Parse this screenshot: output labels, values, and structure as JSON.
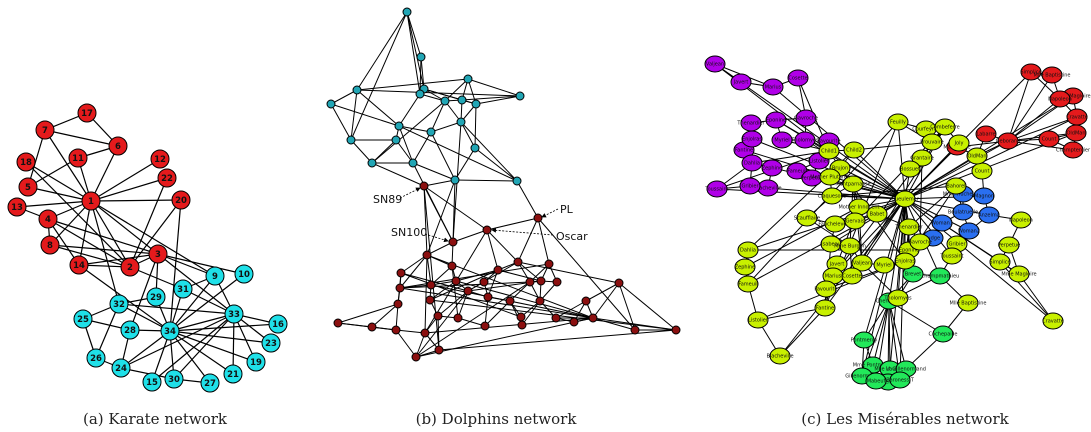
{
  "panels": [
    {
      "caption": "(a) Karate network"
    },
    {
      "caption": "(b) Dolphins network"
    },
    {
      "caption": "(c) Les Misérables network"
    }
  ],
  "colors": {
    "red": "#e41a1c",
    "cyan": "#1fe0e8",
    "darkred": "#8b1010",
    "teal": "#22a6b5",
    "purple": "#b000e8",
    "yellowgreen": "#c8f000",
    "blue": "#2a6ff0",
    "green": "#22e85a"
  },
  "annotations": [
    "SN89",
    "SN100",
    "PL",
    "Oscar"
  ],
  "karate": {
    "nodes": [
      {
        "id": "1",
        "g": "red"
      },
      {
        "id": "2",
        "g": "red"
      },
      {
        "id": "3",
        "g": "red"
      },
      {
        "id": "4",
        "g": "red"
      },
      {
        "id": "5",
        "g": "red"
      },
      {
        "id": "6",
        "g": "red"
      },
      {
        "id": "7",
        "g": "red"
      },
      {
        "id": "8",
        "g": "red"
      },
      {
        "id": "9",
        "g": "cyan"
      },
      {
        "id": "10",
        "g": "cyan"
      },
      {
        "id": "11",
        "g": "red"
      },
      {
        "id": "12",
        "g": "red"
      },
      {
        "id": "13",
        "g": "red"
      },
      {
        "id": "14",
        "g": "red"
      },
      {
        "id": "15",
        "g": "cyan"
      },
      {
        "id": "16",
        "g": "cyan"
      },
      {
        "id": "17",
        "g": "red"
      },
      {
        "id": "18",
        "g": "red"
      },
      {
        "id": "19",
        "g": "cyan"
      },
      {
        "id": "20",
        "g": "red"
      },
      {
        "id": "21",
        "g": "cyan"
      },
      {
        "id": "22",
        "g": "red"
      },
      {
        "id": "23",
        "g": "cyan"
      },
      {
        "id": "24",
        "g": "cyan"
      },
      {
        "id": "25",
        "g": "cyan"
      },
      {
        "id": "26",
        "g": "cyan"
      },
      {
        "id": "27",
        "g": "cyan"
      },
      {
        "id": "28",
        "g": "cyan"
      },
      {
        "id": "29",
        "g": "cyan"
      },
      {
        "id": "30",
        "g": "cyan"
      },
      {
        "id": "31",
        "g": "cyan"
      },
      {
        "id": "32",
        "g": "cyan"
      },
      {
        "id": "33",
        "g": "cyan"
      },
      {
        "id": "34",
        "g": "cyan"
      }
    ],
    "edges": [
      [
        "1",
        "2"
      ],
      [
        "1",
        "3"
      ],
      [
        "1",
        "4"
      ],
      [
        "1",
        "5"
      ],
      [
        "1",
        "6"
      ],
      [
        "1",
        "7"
      ],
      [
        "1",
        "8"
      ],
      [
        "1",
        "9"
      ],
      [
        "1",
        "11"
      ],
      [
        "1",
        "12"
      ],
      [
        "1",
        "13"
      ],
      [
        "1",
        "14"
      ],
      [
        "1",
        "18"
      ],
      [
        "1",
        "20"
      ],
      [
        "1",
        "22"
      ],
      [
        "1",
        "32"
      ],
      [
        "2",
        "3"
      ],
      [
        "2",
        "4"
      ],
      [
        "2",
        "8"
      ],
      [
        "2",
        "14"
      ],
      [
        "2",
        "18"
      ],
      [
        "2",
        "20"
      ],
      [
        "2",
        "22"
      ],
      [
        "2",
        "31"
      ],
      [
        "3",
        "4"
      ],
      [
        "3",
        "8"
      ],
      [
        "3",
        "9"
      ],
      [
        "3",
        "10"
      ],
      [
        "3",
        "14"
      ],
      [
        "3",
        "28"
      ],
      [
        "3",
        "29"
      ],
      [
        "3",
        "33"
      ],
      [
        "4",
        "8"
      ],
      [
        "4",
        "13"
      ],
      [
        "4",
        "14"
      ],
      [
        "5",
        "7"
      ],
      [
        "5",
        "11"
      ],
      [
        "6",
        "7"
      ],
      [
        "6",
        "11"
      ],
      [
        "6",
        "17"
      ],
      [
        "7",
        "17"
      ],
      [
        "9",
        "31"
      ],
      [
        "9",
        "33"
      ],
      [
        "9",
        "34"
      ],
      [
        "10",
        "34"
      ],
      [
        "14",
        "34"
      ],
      [
        "15",
        "33"
      ],
      [
        "15",
        "34"
      ],
      [
        "16",
        "33"
      ],
      [
        "16",
        "34"
      ],
      [
        "19",
        "33"
      ],
      [
        "19",
        "34"
      ],
      [
        "20",
        "34"
      ],
      [
        "21",
        "33"
      ],
      [
        "21",
        "34"
      ],
      [
        "23",
        "33"
      ],
      [
        "23",
        "34"
      ],
      [
        "24",
        "26"
      ],
      [
        "24",
        "28"
      ],
      [
        "24",
        "30"
      ],
      [
        "24",
        "33"
      ],
      [
        "24",
        "34"
      ],
      [
        "25",
        "26"
      ],
      [
        "25",
        "28"
      ],
      [
        "25",
        "32"
      ],
      [
        "26",
        "32"
      ],
      [
        "27",
        "30"
      ],
      [
        "27",
        "34"
      ],
      [
        "28",
        "34"
      ],
      [
        "29",
        "32"
      ],
      [
        "29",
        "34"
      ],
      [
        "30",
        "33"
      ],
      [
        "30",
        "34"
      ],
      [
        "31",
        "33"
      ],
      [
        "31",
        "34"
      ],
      [
        "32",
        "33"
      ],
      [
        "32",
        "34"
      ],
      [
        "33",
        "34"
      ]
    ]
  },
  "dolphins": {
    "teal_count": 21,
    "darkred_count": 41,
    "edge_count": 159
  },
  "lesmis": {
    "labels": [
      "Valjean",
      "Javert",
      "Marius",
      "Cosette",
      "Fantine",
      "Thenardier",
      "Eponine",
      "Gavroche",
      "Enjolras",
      "Myriel",
      "Tholomyes",
      "Favourite",
      "Dahlia",
      "Zephine",
      "Fameuil",
      "Listolier",
      "Blacheville",
      "Gribier",
      "Toussaint",
      "Perpetue",
      "Simplice",
      "Mlle Baptistine",
      "Mme Magloire",
      "Napoleon",
      "Cravatte",
      "Count",
      "OldMan",
      "Champtercier",
      "Geborand",
      "Labarre",
      "Marguerite",
      "Mme Hucheloup",
      "Magnon",
      "Boulatruelle",
      "Anzelma",
      "Woman1",
      "Woman2",
      "Judge",
      "Champmathieu",
      "Brevet",
      "Chenildieu",
      "Cochepaille",
      "Pontmercy",
      "Mme Pontmercy",
      "Mlle Vaubois",
      "Lt Gillenormand",
      "Gillenormand",
      "Mlle Gillenormand",
      "Baroness T",
      "Mabeuf",
      "Feuilly",
      "Courfeyrac",
      "Combeferre",
      "Prouvaire",
      "Joly",
      "Grantaire",
      "Bossuet",
      "Bahorel",
      "Gueulemer",
      "Babet",
      "Claquesous",
      "Montparnasse",
      "Brujon",
      "Child1",
      "Child2",
      "Mother Plutarch",
      "Mother Innocent",
      "Fauchelevent",
      "Gervais",
      "Scaufflaire",
      "Isabeau",
      "Mme Burgon"
    ]
  }
}
